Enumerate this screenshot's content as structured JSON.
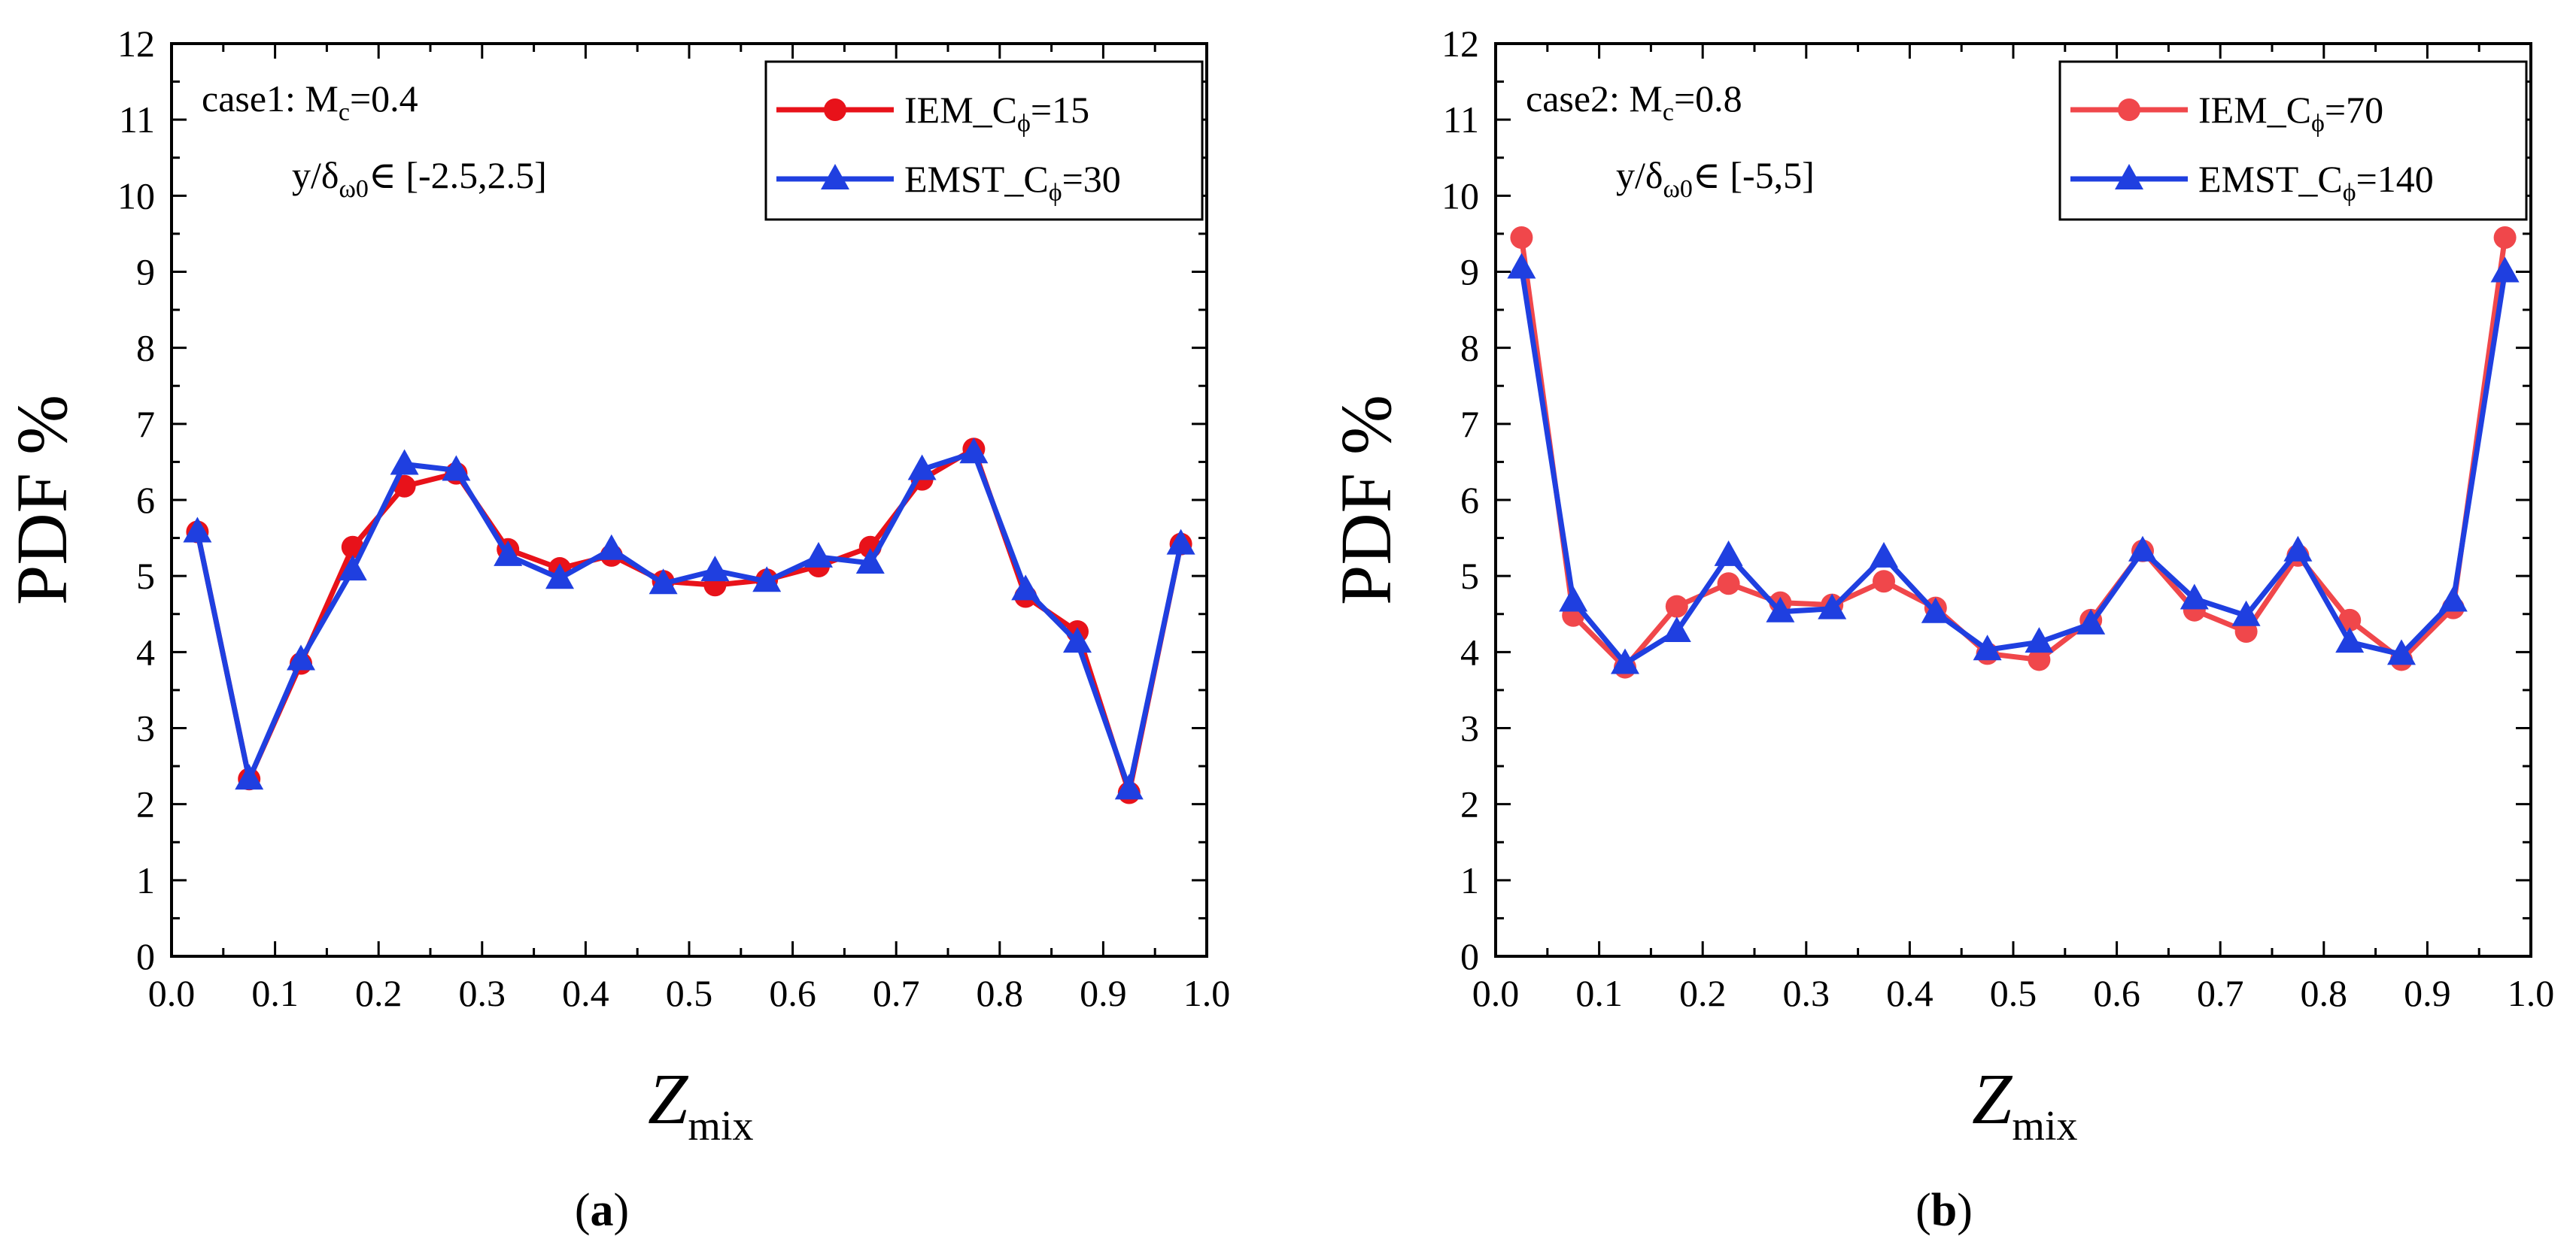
{
  "figure": {
    "panels": [
      {
        "label_open": "(",
        "label_letter": "a",
        "label_close": ")"
      },
      {
        "label_open": "(",
        "label_letter": "b",
        "label_close": ")"
      }
    ]
  },
  "colors": {
    "iem": "#e8121a",
    "iem_b": "#f0474b",
    "emst": "#1f3fe0"
  },
  "chart_data": [
    {
      "type": "line",
      "xlabel": {
        "main": "Z",
        "sub": "mix"
      },
      "ylabel": "PDF %",
      "xlim": [
        0.0,
        1.0
      ],
      "ylim": [
        0,
        12
      ],
      "xticks": [
        "0.0",
        "0.1",
        "0.2",
        "0.3",
        "0.4",
        "0.5",
        "0.6",
        "0.7",
        "0.8",
        "0.9",
        "1.0"
      ],
      "yticks": [
        "0",
        "1",
        "2",
        "3",
        "4",
        "5",
        "6",
        "7",
        "8",
        "9",
        "10",
        "11",
        "12"
      ],
      "annotation_line1": {
        "prefix": "case1: M",
        "sub": "c",
        "suffix": "=0.4"
      },
      "annotation_line2": {
        "prefix": "y/δ",
        "sub": "ω0",
        "suffix": "∈ [-2.5,2.5]"
      },
      "legend_position": "top-right",
      "x": [
        0.025,
        0.075,
        0.125,
        0.175,
        0.225,
        0.275,
        0.325,
        0.375,
        0.425,
        0.475,
        0.525,
        0.575,
        0.625,
        0.675,
        0.725,
        0.775,
        0.825,
        0.875,
        0.925,
        0.975
      ],
      "series": [
        {
          "legend_prefix": "IEM_C",
          "legend_sub": "ϕ",
          "legend_suffix": "=15",
          "marker": "circle",
          "color": "#e8121a",
          "values": [
            5.58,
            2.33,
            3.85,
            5.38,
            6.18,
            6.35,
            5.35,
            5.1,
            5.27,
            4.93,
            4.88,
            4.95,
            5.13,
            5.38,
            6.27,
            6.67,
            4.73,
            4.27,
            2.15,
            5.42
          ]
        },
        {
          "legend_prefix": "EMST_C",
          "legend_sub": "ϕ",
          "legend_suffix": "=30",
          "marker": "triangle",
          "color": "#1f3fe0",
          "values": [
            5.58,
            2.33,
            3.9,
            5.08,
            6.47,
            6.39,
            5.27,
            4.97,
            5.35,
            4.9,
            5.07,
            4.93,
            5.25,
            5.17,
            6.4,
            6.62,
            4.82,
            4.13,
            2.2,
            5.42
          ]
        }
      ]
    },
    {
      "type": "line",
      "xlabel": {
        "main": "Z",
        "sub": "mix"
      },
      "ylabel": "PDF %",
      "xlim": [
        0.0,
        1.0
      ],
      "ylim": [
        0,
        12
      ],
      "xticks": [
        "0.0",
        "0.1",
        "0.2",
        "0.3",
        "0.4",
        "0.5",
        "0.6",
        "0.7",
        "0.8",
        "0.9",
        "1.0"
      ],
      "yticks": [
        "0",
        "1",
        "2",
        "3",
        "4",
        "5",
        "6",
        "7",
        "8",
        "9",
        "10",
        "11",
        "12"
      ],
      "annotation_line1": {
        "prefix": "case2: M",
        "sub": "c",
        "suffix": "=0.8"
      },
      "annotation_line2": {
        "prefix": "y/δ",
        "sub": "ω0",
        "suffix": "∈ [-5,5]"
      },
      "legend_position": "top-right",
      "x": [
        0.025,
        0.075,
        0.125,
        0.175,
        0.225,
        0.275,
        0.325,
        0.375,
        0.425,
        0.475,
        0.525,
        0.575,
        0.625,
        0.675,
        0.725,
        0.775,
        0.825,
        0.875,
        0.925,
        0.975
      ],
      "series": [
        {
          "legend_prefix": "IEM_C",
          "legend_sub": "ϕ",
          "legend_suffix": "=70",
          "marker": "circle",
          "color": "#f0474b",
          "values": [
            9.45,
            4.48,
            3.8,
            4.6,
            4.9,
            4.65,
            4.62,
            4.93,
            4.58,
            3.98,
            3.9,
            4.42,
            5.33,
            4.55,
            4.27,
            5.27,
            4.42,
            3.9,
            4.58,
            9.45
          ]
        },
        {
          "legend_prefix": "EMST_C",
          "legend_sub": "ϕ",
          "legend_suffix": "=140",
          "marker": "triangle",
          "color": "#1f3fe0",
          "values": [
            9.05,
            4.67,
            3.85,
            4.27,
            5.27,
            4.53,
            4.57,
            5.25,
            4.52,
            4.03,
            4.13,
            4.37,
            5.33,
            4.7,
            4.48,
            5.33,
            4.13,
            3.97,
            4.67,
            9.0
          ]
        }
      ]
    }
  ]
}
